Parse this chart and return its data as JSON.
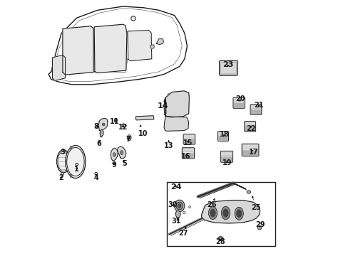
{
  "bg_color": "#ffffff",
  "line_color": "#1a1a1a",
  "gray_light": "#d8d8d8",
  "gray_mid": "#b0b0b0",
  "gray_dark": "#888888",
  "figsize": [
    4.89,
    3.6
  ],
  "dpi": 100,
  "label_fontsize": 7,
  "label_fontsize_large": 8,
  "labels": {
    "1": [
      0.12,
      0.345,
      0.12,
      0.36
    ],
    "2": [
      0.058,
      0.31,
      0.064,
      0.325
    ],
    "3": [
      0.068,
      0.41,
      0.082,
      0.415
    ],
    "4": [
      0.195,
      0.31,
      0.195,
      0.325
    ],
    "5": [
      0.305,
      0.365,
      0.308,
      0.378
    ],
    "6": [
      0.207,
      0.445,
      0.214,
      0.452
    ],
    "7": [
      0.32,
      0.46,
      0.324,
      0.468
    ],
    "8": [
      0.197,
      0.51,
      0.206,
      0.51
    ],
    "9": [
      0.268,
      0.358,
      0.268,
      0.37
    ],
    "10": [
      0.378,
      0.482,
      0.368,
      0.516
    ],
    "11": [
      0.27,
      0.53,
      0.272,
      0.538
    ],
    "12": [
      0.302,
      0.508,
      0.302,
      0.515
    ],
    "13": [
      0.48,
      0.432,
      0.48,
      0.455
    ],
    "14": [
      0.457,
      0.588,
      0.462,
      0.608
    ],
    "15": [
      0.556,
      0.445,
      0.558,
      0.455
    ],
    "16": [
      0.548,
      0.39,
      0.552,
      0.4
    ],
    "17": [
      0.81,
      0.408,
      0.8,
      0.42
    ],
    "18": [
      0.698,
      0.48,
      0.692,
      0.468
    ],
    "19": [
      0.708,
      0.368,
      0.704,
      0.382
    ],
    "20": [
      0.76,
      0.618,
      0.756,
      0.604
    ],
    "21": [
      0.832,
      0.59,
      0.826,
      0.576
    ],
    "22": [
      0.802,
      0.5,
      0.798,
      0.512
    ],
    "23": [
      0.712,
      0.752,
      0.71,
      0.74
    ],
    "24": [
      0.508,
      0.272,
      0.51,
      0.281
    ],
    "25": [
      0.818,
      0.192,
      0.8,
      0.245
    ],
    "26": [
      0.648,
      0.202,
      0.66,
      0.228
    ],
    "27": [
      0.538,
      0.092,
      0.548,
      0.118
    ],
    "28": [
      0.68,
      0.058,
      0.68,
      0.072
    ],
    "29": [
      0.838,
      0.125,
      0.832,
      0.112
    ],
    "30": [
      0.496,
      0.202,
      0.506,
      0.188
    ],
    "31": [
      0.51,
      0.138,
      0.518,
      0.148
    ]
  }
}
